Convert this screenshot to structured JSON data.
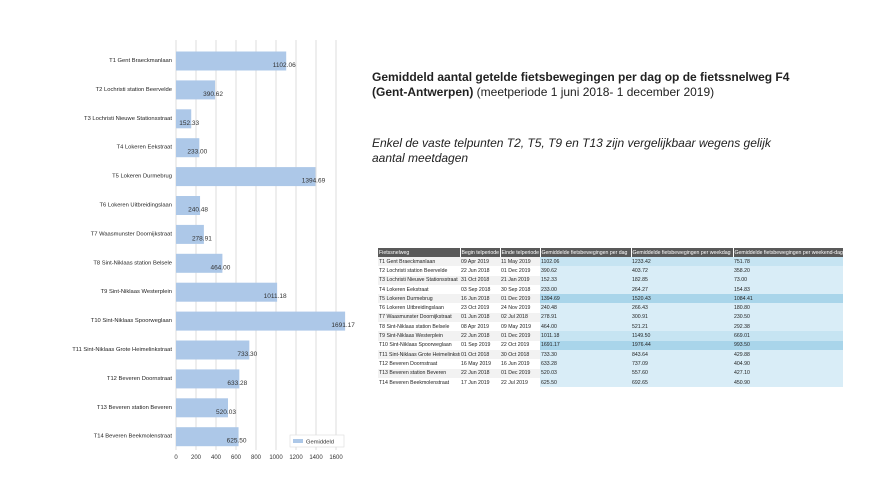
{
  "chart_data": {
    "type": "bar",
    "orientation": "horizontal",
    "categories": [
      "T1 Gent Braeckmanlaan",
      "T2 Lochristi station Beervelde",
      "T3 Lochristi Nieuwe Stationsstraat",
      "T4 Lokeren Eekstraat",
      "T5 Lokeren Durmebrug",
      "T6 Lokeren Uitbreidingslaan",
      "T7 Waasmunster Doornijkstraat",
      "T8 Sint-Niklaas station Belsele",
      "T9 Sint-Niklaas Westerplein",
      "T10 Sint-Niklaas Spoorweglaan",
      "T11 Sint-Niklaas Grote Heimelinkstraat",
      "T12 Beveren Doornstraat",
      "T13 Beveren station Beveren",
      "T14 Beveren Beekmolenstraat"
    ],
    "series": [
      {
        "name": "Gemiddeld",
        "color": "#adc8e8",
        "values": [
          1102.06,
          390.62,
          152.33,
          233.0,
          1394.69,
          240.48,
          278.91,
          464.0,
          1011.18,
          1691.17,
          733.3,
          633.28,
          520.03,
          625.5
        ],
        "labels": [
          "1102.06",
          "390.62",
          "152.33",
          "233.00",
          "1394.69",
          "240.48",
          "278.91",
          "464.00",
          "1011.18",
          "1691.17",
          "733.30",
          "633.28",
          "520.03",
          "625.50"
        ]
      }
    ],
    "xlim": [
      0,
      1750
    ],
    "xticks": [
      "0",
      "200",
      "400",
      "600",
      "800",
      "1000",
      "1200",
      "1400",
      "1600"
    ],
    "grid": true,
    "legend": "bottom-right",
    "title": "",
    "xlabel": "",
    "ylabel": ""
  },
  "title": {
    "bold": "Gemiddeld aantal getelde fietsbewegingen per dag op de fietssnelweg F4 (Gent-Antwerpen)",
    "normal": " (meetperiode  1 juni 2018- 1 december  2019)"
  },
  "note": "Enkel de vaste telpunten T2, T5, T9 en T13 zijn vergelijkbaar wegens gelijk aantal meetdagen",
  "table": {
    "headers": [
      "Fietssnelweg",
      "Begin telperiode",
      "Einde telperiode",
      "Gemiddelde fietsbewegingen per dag",
      "Gemiddelde fietsbewegingen per weekdag",
      "Gemiddelde fietsbewegingen per weekend-dag"
    ],
    "rows": [
      [
        "T1 Gent Braeckmanlaan",
        "09 Apr 2019",
        "11 May 2019",
        "1102.06",
        "1233.42",
        "751.78"
      ],
      [
        "T2 Lochristi station Beervelde",
        "22 Jun 2018",
        "01 Dec 2019",
        "390.62",
        "403.72",
        "358.20"
      ],
      [
        "T3 Lochristi Nieuwe Stationsstraat",
        "31 Oct 2018",
        "21 Jan 2019",
        "152.33",
        "182.85",
        "73.00"
      ],
      [
        "T4 Lokeren Eekstraat",
        "03 Sep 2018",
        "30 Sep 2018",
        "233.00",
        "264.27",
        "154.83"
      ],
      [
        "T5 Lokeren Durmebrug",
        "16 Jun 2018",
        "01 Dec 2019",
        "1394.69",
        "1520.43",
        "1084.41"
      ],
      [
        "T6 Lokeren Uitbreidingslaan",
        "23 Oct 2019",
        "24 Nov 2019",
        "240.48",
        "266.43",
        "180.80"
      ],
      [
        "T7 Waasmunster Doornijkstraat",
        "01 Jun 2018",
        "02 Jul 2018",
        "278.91",
        "300.91",
        "230.50"
      ],
      [
        "T8 Sint-Niklaas station Belsele",
        "08 Apr 2019",
        "09 May 2019",
        "464.00",
        "521.21",
        "292.38"
      ],
      [
        "T9 Sint-Niklaas Westerplein",
        "22 Jun 2018",
        "01 Dec 2019",
        "1011.18",
        "1149.50",
        "669.01"
      ],
      [
        "T10 Sint-Niklaas Spoorweglaan",
        "01 Sep 2019",
        "22 Oct 2019",
        "1691.17",
        "1976.44",
        "993.50"
      ],
      [
        "T11 Sint-Niklaas Grote Heimelinkstraat",
        "01 Oct 2018",
        "30 Oct 2018",
        "733.30",
        "843.64",
        "429.88"
      ],
      [
        "T12 Beveren Doornstraat",
        "16 May 2019",
        "16 Jun 2019",
        "633.28",
        "737.09",
        "404.90"
      ],
      [
        "T13 Beveren station Beveren",
        "22 Jun 2018",
        "01 Dec 2019",
        "520.03",
        "557.60",
        "427.10"
      ],
      [
        "T14 Beveren Beekmolenstraat",
        "17 Jun 2019",
        "22 Jul 2019",
        "625.50",
        "692.65",
        "450.90"
      ]
    ]
  }
}
